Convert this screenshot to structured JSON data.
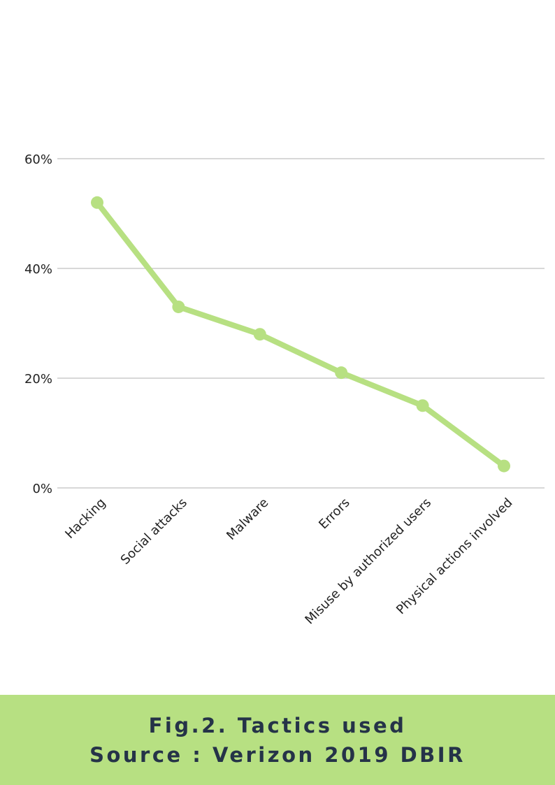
{
  "chart_data": {
    "type": "line",
    "categories": [
      "Hacking",
      "Social attacks",
      "Malware",
      "Errors",
      "Misuse by authorized users",
      "Physical actions involved"
    ],
    "series": [
      {
        "values": [
          52,
          33,
          28,
          21,
          15,
          4
        ]
      }
    ],
    "ylim": [
      0,
      60
    ],
    "yticks": [
      0,
      20,
      40,
      60
    ],
    "ytick_labels": [
      "0%",
      "20%",
      "40%",
      "60%"
    ],
    "grid": true,
    "line_color": "#b7e082",
    "grid_color": "#cccccc"
  },
  "caption": {
    "line1": "Fig.2. Tactics used",
    "line2": "Source : Verizon 2019 DBIR",
    "background": "#b7e082",
    "text_color": "#253348"
  }
}
